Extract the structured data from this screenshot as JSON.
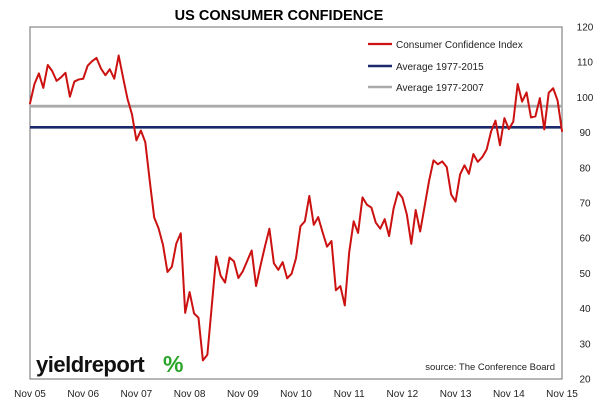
{
  "chart_data": {
    "type": "line",
    "title": "US CONSUMER CONFIDENCE",
    "xlabel": "",
    "ylabel": "",
    "x_tick_labels": [
      "Nov 05",
      "Nov 06",
      "Nov 07",
      "Nov 08",
      "Nov 09",
      "Nov 10",
      "Nov 11",
      "Nov 12",
      "Nov 13",
      "Nov 14",
      "Nov 15"
    ],
    "y_ticks": [
      20,
      30,
      40,
      50,
      60,
      70,
      80,
      90,
      100,
      110,
      120
    ],
    "ylim": [
      20,
      120
    ],
    "x_range_years": [
      2005.833,
      2015.833
    ],
    "legend_position": "top-right",
    "grid": false,
    "series": [
      {
        "name": "Consumer Confidence Index",
        "color": "#cc1111",
        "kind": "line",
        "x": [
          2005.833,
          2005.917,
          2006.0,
          2006.083,
          2006.167,
          2006.25,
          2006.333,
          2006.417,
          2006.5,
          2006.583,
          2006.667,
          2006.75,
          2006.833,
          2006.917,
          2007.0,
          2007.083,
          2007.167,
          2007.25,
          2007.333,
          2007.417,
          2007.5,
          2007.583,
          2007.667,
          2007.75,
          2007.833,
          2007.917,
          2008.0,
          2008.083,
          2008.167,
          2008.25,
          2008.333,
          2008.417,
          2008.5,
          2008.583,
          2008.667,
          2008.75,
          2008.833,
          2008.917,
          2009.0,
          2009.083,
          2009.167,
          2009.25,
          2009.333,
          2009.417,
          2009.5,
          2009.583,
          2009.667,
          2009.75,
          2009.833,
          2009.917,
          2010.0,
          2010.083,
          2010.167,
          2010.25,
          2010.333,
          2010.417,
          2010.5,
          2010.583,
          2010.667,
          2010.75,
          2010.833,
          2010.917,
          2011.0,
          2011.083,
          2011.167,
          2011.25,
          2011.333,
          2011.417,
          2011.5,
          2011.583,
          2011.667,
          2011.75,
          2011.833,
          2011.917,
          2012.0,
          2012.083,
          2012.167,
          2012.25,
          2012.333,
          2012.417,
          2012.5,
          2012.583,
          2012.667,
          2012.75,
          2012.833,
          2012.917,
          2013.0,
          2013.083,
          2013.167,
          2013.25,
          2013.333,
          2013.417,
          2013.5,
          2013.583,
          2013.667,
          2013.75,
          2013.833,
          2013.917,
          2014.0,
          2014.083,
          2014.167,
          2014.25,
          2014.333,
          2014.417,
          2014.5,
          2014.583,
          2014.667,
          2014.75,
          2014.833,
          2014.917,
          2015.0,
          2015.083,
          2015.167,
          2015.25,
          2015.333,
          2015.417,
          2015.5,
          2015.583,
          2015.667,
          2015.75,
          2015.833
        ],
        "values": [
          98.3,
          103.8,
          106.8,
          102.7,
          109.2,
          107.5,
          104.7,
          105.7,
          107.0,
          100.2,
          104.5,
          105.1,
          105.3,
          109.0,
          110.3,
          111.2,
          108.2,
          106.3,
          108.0,
          105.3,
          111.9,
          105.6,
          99.5,
          95.2,
          87.8,
          90.6,
          87.3,
          76.4,
          65.9,
          62.8,
          58.1,
          50.4,
          51.9,
          58.5,
          61.4,
          38.8,
          44.7,
          38.6,
          37.4,
          25.3,
          26.9,
          40.8,
          54.8,
          49.3,
          47.4,
          54.5,
          53.4,
          48.7,
          50.6,
          53.6,
          56.5,
          46.4,
          52.3,
          57.7,
          62.7,
          52.9,
          51.0,
          53.2,
          48.6,
          49.9,
          54.3,
          63.4,
          64.8,
          72.0,
          63.8,
          66.0,
          61.7,
          57.6,
          59.2,
          45.2,
          46.4,
          40.9,
          56.0,
          64.8,
          61.5,
          71.6,
          69.5,
          68.7,
          64.4,
          62.7,
          65.4,
          60.6,
          68.4,
          73.1,
          71.5,
          66.7,
          58.4,
          68.0,
          61.9,
          69.0,
          76.2,
          82.1,
          81.0,
          81.8,
          80.2,
          72.4,
          70.4,
          78.1,
          80.7,
          78.3,
          83.9,
          81.7,
          83.0,
          85.2,
          90.3,
          93.4,
          86.4,
          94.1,
          91.0,
          93.1,
          103.8,
          98.8,
          101.4,
          94.3,
          94.6,
          99.8,
          90.9,
          101.3,
          102.6,
          99.1,
          90.4
        ]
      },
      {
        "name": "Average 1977-2015",
        "color": "#1a2a6c",
        "kind": "hline",
        "value": 91.5
      },
      {
        "name": "Average 1977-2007",
        "color": "#aaaaaa",
        "kind": "hline",
        "value": 97.5
      }
    ]
  },
  "source_note": "source: The Conference Board",
  "logo": {
    "text": "yieldreport",
    "symbol": "%"
  }
}
